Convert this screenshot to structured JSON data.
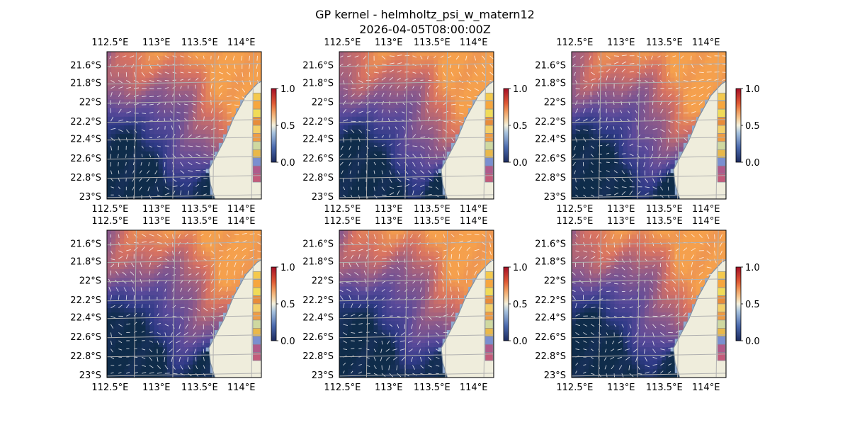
{
  "title": {
    "line1": "GP kernel - helmholtz_psi_w_matern12",
    "line2": "2026-04-05T08:00:00Z"
  },
  "colors": {
    "ocean_bg": "#8fa9d0",
    "land": "#efeddc",
    "coast": "#7f8fa0",
    "grid": "#b0b0b0",
    "quiver": "#ffffff",
    "cmap_low": "#1c2a5e",
    "cmap_mid": "#f4f1de",
    "cmap_high": "#a50f26"
  },
  "chart_data": [
    {
      "type": "heatmap",
      "panel": 1,
      "xticks": [
        "112.5°E",
        "113°E",
        "113.5°E",
        "114°E"
      ],
      "yticks": [
        "21.6°S",
        "21.8°S",
        "22°S",
        "22.2°S",
        "22.4°S",
        "22.6°S",
        "22.8°S",
        "23°S"
      ],
      "xlim": [
        112.4,
        114.2
      ],
      "ylim": [
        -23.0,
        -21.45
      ],
      "colorbar": {
        "min": 0.0,
        "max": 1.0,
        "ticks": [
          "0.0",
          "0.5",
          "1.0"
        ]
      },
      "overlay": "quiver",
      "grid": true
    },
    {
      "type": "heatmap",
      "panel": 2,
      "xticks": [
        "112.5°E",
        "113°E",
        "113.5°E",
        "114°E"
      ],
      "yticks": [
        "21.6°S",
        "21.8°S",
        "22°S",
        "22.2°S",
        "22.4°S",
        "22.6°S",
        "22.8°S",
        "23°S"
      ],
      "xlim": [
        112.4,
        114.2
      ],
      "ylim": [
        -23.0,
        -21.45
      ],
      "colorbar": {
        "min": 0.0,
        "max": 1.0,
        "ticks": [
          "0.0",
          "0.5",
          "1.0"
        ]
      },
      "overlay": "quiver",
      "grid": true
    },
    {
      "type": "heatmap",
      "panel": 3,
      "xticks": [
        "112.5°E",
        "113°E",
        "113.5°E",
        "114°E"
      ],
      "yticks": [
        "21.6°S",
        "21.8°S",
        "22°S",
        "22.2°S",
        "22.4°S",
        "22.6°S",
        "22.8°S",
        "23°S"
      ],
      "xlim": [
        112.4,
        114.2
      ],
      "ylim": [
        -23.0,
        -21.45
      ],
      "colorbar": {
        "min": 0.0,
        "max": 1.0,
        "ticks": [
          "0.0",
          "0.5",
          "1.0"
        ]
      },
      "overlay": "quiver",
      "grid": true
    },
    {
      "type": "heatmap",
      "panel": 4,
      "xticks": [
        "112.5°E",
        "113°E",
        "113.5°E",
        "114°E"
      ],
      "yticks": [
        "21.6°S",
        "21.8°S",
        "22°S",
        "22.2°S",
        "22.4°S",
        "22.6°S",
        "22.8°S",
        "23°S"
      ],
      "xlim": [
        112.4,
        114.2
      ],
      "ylim": [
        -23.0,
        -21.45
      ],
      "colorbar": {
        "min": 0.0,
        "max": 1.0,
        "ticks": [
          "0.0",
          "0.5",
          "1.0"
        ]
      },
      "overlay": "quiver",
      "grid": true
    },
    {
      "type": "heatmap",
      "panel": 5,
      "xticks": [
        "112.5°E",
        "113°E",
        "113.5°E",
        "114°E"
      ],
      "yticks": [
        "21.6°S",
        "21.8°S",
        "22°S",
        "22.2°S",
        "22.4°S",
        "22.6°S",
        "22.8°S",
        "23°S"
      ],
      "xlim": [
        112.4,
        114.2
      ],
      "ylim": [
        -23.0,
        -21.45
      ],
      "colorbar": {
        "min": 0.0,
        "max": 1.0,
        "ticks": [
          "0.0",
          "0.5",
          "1.0"
        ]
      },
      "overlay": "quiver",
      "grid": true
    },
    {
      "type": "heatmap",
      "panel": 6,
      "xticks": [
        "112.5°E",
        "113°E",
        "113.5°E",
        "114°E"
      ],
      "yticks": [
        "21.6°S",
        "21.8°S",
        "22°S",
        "22.2°S",
        "22.4°S",
        "22.6°S",
        "22.8°S",
        "23°S"
      ],
      "xlim": [
        112.4,
        114.2
      ],
      "ylim": [
        -23.0,
        -21.45
      ],
      "colorbar": {
        "min": 0.0,
        "max": 1.0,
        "ticks": [
          "0.0",
          "0.5",
          "1.0"
        ]
      },
      "overlay": "quiver",
      "grid": true
    }
  ]
}
